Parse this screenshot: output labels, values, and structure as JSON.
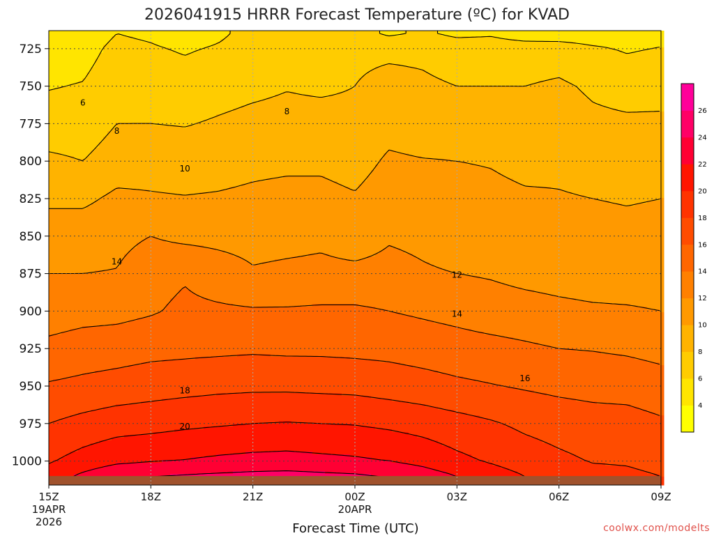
{
  "header": {
    "title": "2026041915 HRRR Forecast Temperature (ºC) for KVAD"
  },
  "credit": "coolwx.com/modelts",
  "chart_data": {
    "type": "heatmap",
    "title": "2026041915 HRRR Forecast Temperature (ºC) for KVAD",
    "xlabel": "Forecast Time (UTC)",
    "ylabel": "",
    "x_ticks": [
      {
        "hour": 0,
        "label": "15Z",
        "sub": [
          "19APR",
          "2026"
        ]
      },
      {
        "hour": 3,
        "label": "18Z",
        "sub": []
      },
      {
        "hour": 6,
        "label": "21Z",
        "sub": []
      },
      {
        "hour": 9,
        "label": "00Z",
        "sub": [
          "20APR"
        ]
      },
      {
        "hour": 12,
        "label": "03Z",
        "sub": []
      },
      {
        "hour": 15,
        "label": "06Z",
        "sub": []
      },
      {
        "hour": 18,
        "label": "09Z",
        "sub": []
      }
    ],
    "xlim_hours": [
      0,
      18
    ],
    "y_ticks": [
      725,
      750,
      775,
      800,
      825,
      850,
      875,
      900,
      925,
      950,
      975,
      1000
    ],
    "ylim_mb": [
      1016,
      713
    ],
    "levels_mb": [
      715,
      725,
      750,
      775,
      800,
      825,
      850,
      875,
      900,
      925,
      950,
      975,
      1000,
      1010
    ],
    "temperature_c": [
      [
        4.8,
        4.9,
        6.0,
        5.7,
        5.0,
        5.7,
        6.6,
        6.8,
        6.3,
        6.8,
        5.7,
        6.3,
        5.6,
        5.8,
        5.1,
        4.9,
        4.8,
        4.9,
        5.3
      ],
      [
        5.1,
        5.3,
        6.5,
        6.2,
        5.8,
        6.2,
        6.8,
        7.2,
        7.0,
        7.6,
        7.6,
        7.6,
        7.1,
        6.9,
        6.9,
        7.0,
        6.3,
        5.8,
        6.1
      ],
      [
        5.9,
        6.1,
        7.1,
        7.1,
        6.9,
        7.3,
        7.6,
        7.9,
        7.7,
        8.0,
        8.6,
        8.3,
        8.0,
        8.0,
        8.0,
        8.3,
        7.7,
        7.3,
        7.4
      ],
      [
        6.8,
        6.9,
        8.0,
        8.0,
        7.9,
        8.2,
        8.5,
        8.6,
        8.7,
        8.5,
        9.3,
        8.9,
        9.0,
        9.3,
        8.9,
        8.9,
        8.4,
        8.3,
        8.3
      ],
      [
        8.4,
        8.0,
        9.0,
        9.2,
        9.0,
        9.2,
        9.5,
        9.6,
        9.6,
        9.2,
        10.3,
        10.1,
        10.0,
        9.9,
        9.6,
        9.7,
        9.5,
        9.3,
        9.3
      ],
      [
        9.6,
        9.6,
        10.4,
        10.2,
        10.1,
        10.2,
        10.4,
        10.6,
        10.6,
        10.2,
        11.1,
        10.9,
        10.6,
        10.4,
        10.2,
        10.1,
        10.0,
        9.9,
        10.0
      ],
      [
        11.1,
        11.1,
        11.4,
        12.0,
        11.5,
        11.4,
        11.3,
        11.4,
        11.6,
        11.0,
        11.8,
        11.6,
        11.2,
        11.0,
        10.7,
        10.6,
        10.5,
        10.4,
        10.5
      ],
      [
        12.0,
        12.0,
        12.1,
        13.3,
        13.8,
        13.0,
        12.2,
        12.4,
        12.5,
        12.5,
        12.6,
        12.2,
        12.0,
        11.8,
        11.4,
        11.2,
        11.0,
        11.0,
        11.0
      ],
      [
        13.0,
        13.3,
        13.4,
        13.8,
        14.4,
        14.3,
        14.2,
        14.2,
        14.3,
        14.3,
        14.0,
        13.7,
        13.4,
        13.0,
        12.8,
        12.5,
        12.3,
        12.2,
        12.0
      ],
      [
        14.5,
        14.9,
        15.1,
        15.4,
        15.5,
        15.6,
        15.7,
        15.6,
        15.6,
        15.5,
        15.4,
        15.1,
        14.8,
        14.6,
        14.3,
        14.0,
        13.9,
        13.7,
        13.4
      ],
      [
        16.2,
        16.5,
        16.8,
        17.1,
        17.3,
        17.5,
        17.6,
        17.6,
        17.5,
        17.4,
        17.1,
        16.8,
        16.4,
        16.1,
        15.8,
        15.5,
        15.3,
        15.2,
        14.8
      ],
      [
        18.0,
        18.6,
        19.1,
        19.3,
        19.6,
        19.8,
        20.0,
        20.1,
        20.0,
        19.9,
        19.6,
        19.2,
        18.7,
        18.2,
        17.6,
        17.2,
        16.9,
        16.8,
        16.3
      ],
      [
        19.8,
        20.8,
        21.6,
        21.9,
        22.1,
        22.4,
        22.6,
        22.7,
        22.5,
        22.3,
        22.0,
        21.4,
        20.5,
        19.8,
        19.0,
        18.4,
        17.9,
        17.8,
        17.4
      ],
      [
        21.0,
        22.4,
        23.6,
        24.0,
        24.2,
        24.4,
        24.6,
        24.7,
        24.5,
        24.3,
        23.9,
        23.0,
        22.0,
        21.0,
        20.0,
        19.2,
        18.6,
        18.4,
        18.0
      ]
    ],
    "contour_labels": [
      {
        "hour": 1.0,
        "mb": 761,
        "text": "6"
      },
      {
        "hour": 2.0,
        "mb": 780,
        "text": "8"
      },
      {
        "hour": 7.0,
        "mb": 767,
        "text": "8"
      },
      {
        "hour": 4.0,
        "mb": 805,
        "text": "10"
      },
      {
        "hour": 2.0,
        "mb": 867,
        "text": "14"
      },
      {
        "hour": 12.0,
        "mb": 876,
        "text": "12"
      },
      {
        "hour": 12.0,
        "mb": 902,
        "text": "14"
      },
      {
        "hour": 4.0,
        "mb": 953,
        "text": "18"
      },
      {
        "hour": 4.0,
        "mb": 977,
        "text": "20"
      },
      {
        "hour": 14.0,
        "mb": 945,
        "text": "16"
      }
    ],
    "colorbar": {
      "min": 2,
      "max": 28,
      "step": 2,
      "ticks": [
        4,
        6,
        8,
        10,
        12,
        14,
        16,
        18,
        20,
        22,
        24,
        26
      ],
      "colors": [
        "#ffff00",
        "#ffe500",
        "#ffcc00",
        "#ffb300",
        "#ff9900",
        "#ff8000",
        "#ff6600",
        "#ff4c00",
        "#ff3300",
        "#ff1500",
        "#ff0033",
        "#ff0066",
        "#ff0099"
      ]
    },
    "ground": {
      "mb": 1010,
      "color": "#a0522d"
    },
    "grid": true
  }
}
